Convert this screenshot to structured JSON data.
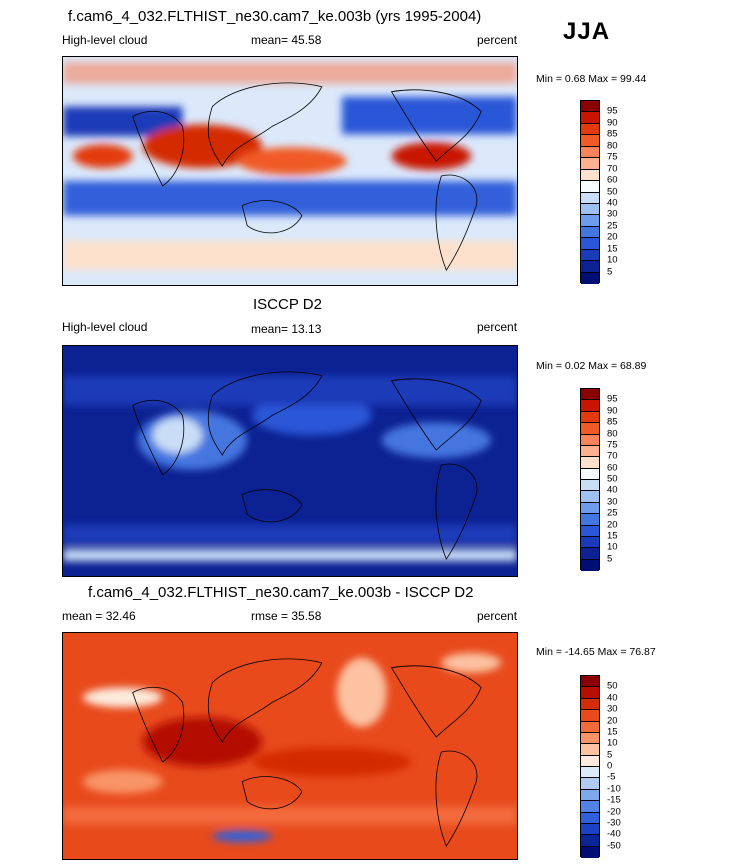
{
  "season": "JJA",
  "panels": [
    {
      "title": "f.cam6_4_032.FLTHIST_ne30.cam7_ke.003b (yrs 1995-2004)",
      "left_label": "High-level cloud",
      "center_label": "mean=  45.58",
      "right_label": "percent",
      "minmax": "Min =   0.68 Max =  99.44",
      "levels": [
        "95",
        "90",
        "85",
        "80",
        "75",
        "70",
        "60",
        "50",
        "40",
        "30",
        "25",
        "20",
        "15",
        "10",
        "5"
      ],
      "colors": [
        "#8a0000",
        "#c81400",
        "#e33a0c",
        "#f05a28",
        "#f8825a",
        "#fcb090",
        "#fde1cc",
        "#f8fbff",
        "#c9def6",
        "#9ec1f0",
        "#6d9cea",
        "#4476e0",
        "#2c56d8",
        "#1a3bb8",
        "#0c2192",
        "#000d73"
      ]
    },
    {
      "title": "ISCCP D2",
      "left_label": "High-level cloud",
      "center_label": "mean=  13.13",
      "right_label": "percent",
      "minmax": "Min =   0.02 Max =  68.89",
      "levels": [
        "95",
        "90",
        "85",
        "80",
        "75",
        "70",
        "60",
        "50",
        "40",
        "30",
        "25",
        "20",
        "15",
        "10",
        "5"
      ],
      "colors": [
        "#8a0000",
        "#c81400",
        "#e33a0c",
        "#f05a28",
        "#f8825a",
        "#fcb090",
        "#fde1cc",
        "#f8fbff",
        "#c9def6",
        "#9ec1f0",
        "#6d9cea",
        "#4476e0",
        "#2c56d8",
        "#1a3bb8",
        "#0c2192",
        "#000d73"
      ]
    },
    {
      "title": "f.cam6_4_032.FLTHIST_ne30.cam7_ke.003b - ISCCP D2",
      "left_label": "mean =  32.46",
      "center_label": "rmse =  35.58",
      "right_label": "percent",
      "minmax": "Min = -14.65 Max =  76.87",
      "levels": [
        "50",
        "40",
        "30",
        "20",
        "15",
        "10",
        "5",
        "0",
        "-5",
        "-10",
        "-15",
        "-20",
        "-30",
        "-40",
        "-50"
      ],
      "colors": [
        "#8a0000",
        "#b40f00",
        "#d42c06",
        "#e84a1c",
        "#f36a3c",
        "#f99468",
        "#fcc2a2",
        "#fdebdd",
        "#dbe9fb",
        "#afcbf3",
        "#7fa8ec",
        "#5282e3",
        "#3160da",
        "#1b42c4",
        "#0c2594",
        "#000d73"
      ]
    }
  ]
}
